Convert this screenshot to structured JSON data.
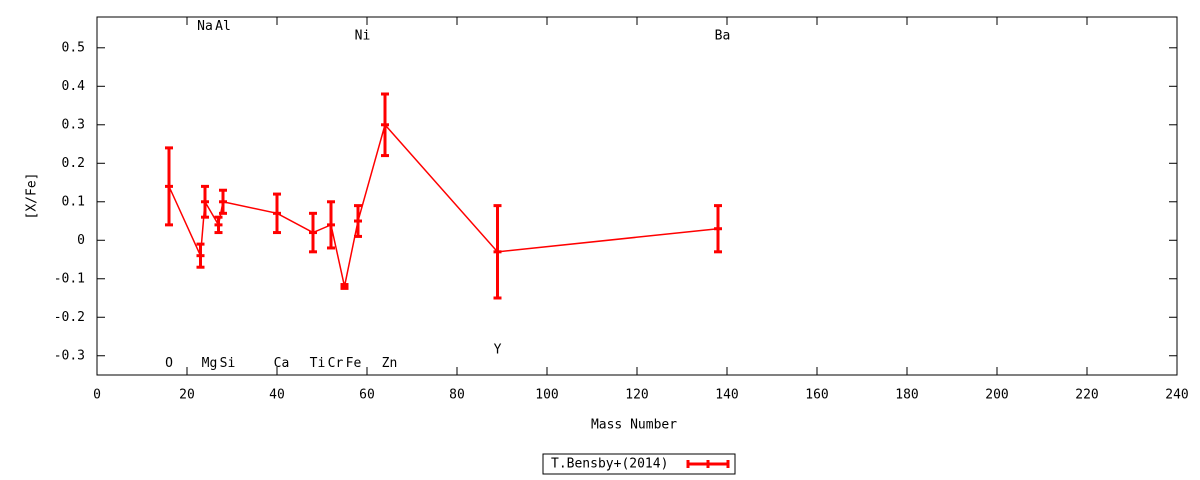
{
  "chart_data": {
    "type": "errorline",
    "xlabel": "Mass Number",
    "ylabel": "[X/Fe]",
    "xlim": [
      0,
      240
    ],
    "xticks": [
      0,
      20,
      40,
      60,
      80,
      100,
      120,
      140,
      160,
      180,
      200,
      220,
      240
    ],
    "ylim": [
      -0.35,
      0.58
    ],
    "yticks": [
      -0.3,
      -0.2,
      -0.1,
      0,
      0.1,
      0.2,
      0.3,
      0.4,
      0.5
    ],
    "series": [
      {
        "name": "T.Bensby+(2014)",
        "color": "#ff0000",
        "x": [
          16,
          23,
          24,
          27,
          28,
          40,
          48,
          52,
          55,
          58,
          64,
          89,
          138
        ],
        "values": [
          0.14,
          -0.04,
          0.1,
          0.04,
          0.1,
          0.07,
          0.02,
          0.04,
          -0.12,
          0.05,
          0.3,
          -0.03,
          0.03
        ],
        "errors": [
          0.1,
          0.03,
          0.04,
          0.02,
          0.03,
          0.05,
          0.05,
          0.06,
          0.005,
          0.04,
          0.08,
          0.12,
          0.06
        ]
      }
    ],
    "annotations": [
      {
        "text": "O",
        "x": 16,
        "y": -0.32
      },
      {
        "text": "Na",
        "x": 24,
        "y": 0.555
      },
      {
        "text": "Al",
        "x": 28,
        "y": 0.555
      },
      {
        "text": "Mg",
        "x": 25,
        "y": -0.32
      },
      {
        "text": "Si",
        "x": 29,
        "y": -0.32
      },
      {
        "text": "Ca",
        "x": 41,
        "y": -0.32
      },
      {
        "text": "Ti",
        "x": 49,
        "y": -0.32
      },
      {
        "text": "Cr",
        "x": 53,
        "y": -0.32
      },
      {
        "text": "Fe",
        "x": 57,
        "y": -0.32
      },
      {
        "text": "Zn",
        "x": 65,
        "y": -0.32
      },
      {
        "text": "Ni",
        "x": 59,
        "y": 0.53
      },
      {
        "text": "Ba",
        "x": 139,
        "y": 0.53
      },
      {
        "text": "Y",
        "x": 89,
        "y": -0.285
      }
    ],
    "legend": "bottom"
  }
}
